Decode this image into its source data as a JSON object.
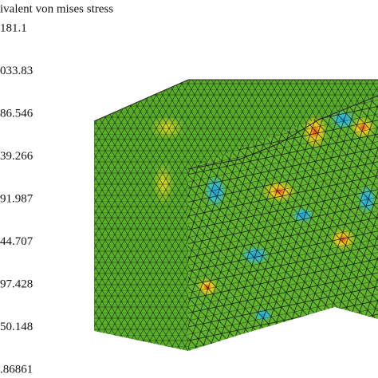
{
  "legend": {
    "title": "ivalent von mises stress",
    "labels": [
      "181.1",
      "033.83",
      "86.546",
      "39.266",
      "91.987",
      "44.707",
      "97.428",
      "50.148",
      ".86861"
    ]
  }
}
